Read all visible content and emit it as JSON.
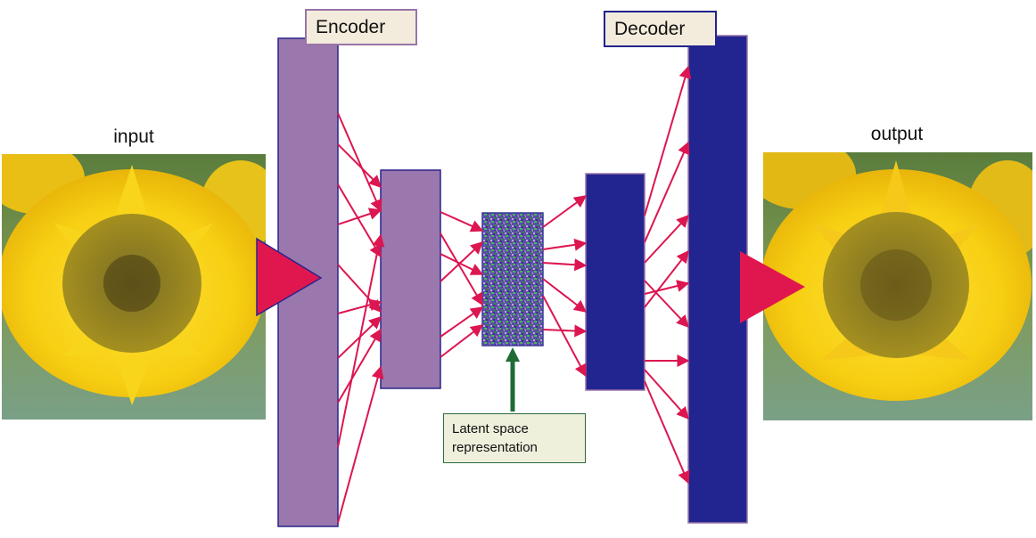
{
  "labels": {
    "input": "input",
    "output": "output",
    "encoder": "Encoder",
    "decoder": "Decoder",
    "latent_line1": "Latent space",
    "latent_line2": "representation"
  },
  "colors": {
    "encoder_layer": "#9a78ad",
    "decoder_layer": "#22258f",
    "connection_arrow": "#dc1650",
    "latent_pointer": "#1e6b36",
    "play_triangle": "#e0174f",
    "title_box_fill": "#f3ecdc"
  },
  "images": {
    "input": "sunflower-photo",
    "output": "sunflower-reconstruction-photo",
    "latent": "latent-noise-tile"
  }
}
